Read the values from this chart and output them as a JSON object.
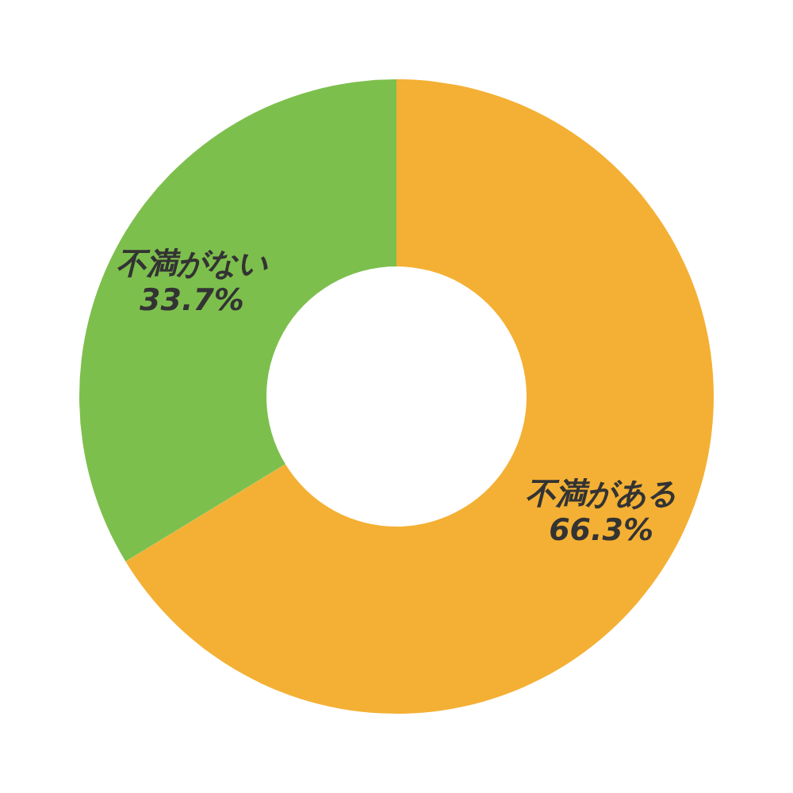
{
  "chart_data": {
    "type": "donut",
    "categories": [
      "不満がある",
      "不満がない"
    ],
    "values": [
      66.3,
      33.7
    ],
    "value_labels": [
      "66.3%",
      "33.7%"
    ],
    "colors": [
      "#f4b034",
      "#7dbf4d"
    ],
    "legend": false
  }
}
